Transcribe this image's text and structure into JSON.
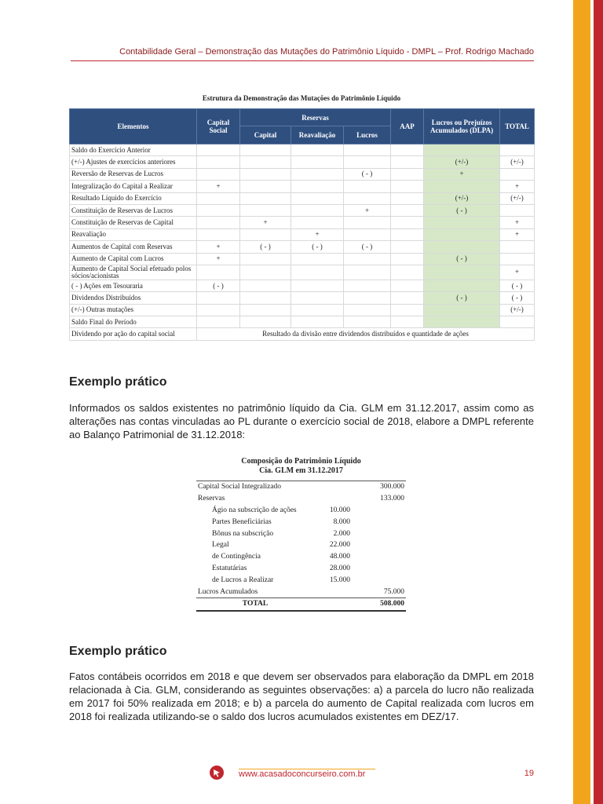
{
  "header": {
    "title": "Contabilidade Geral – Demonstração das Mutações do Patrimônio Líquido - DMPL – Prof. Rodrigo Machado"
  },
  "table1": {
    "title": "Estrutura da Demonstração das Mutações do Patrimônio Líquido",
    "headers": {
      "elements": "Elementos",
      "capital_social": "Capital Social",
      "reserves": "Reservas",
      "capital": "Capital",
      "revaluation": "Reavaliação",
      "profits": "Lucros",
      "aap": "AAP",
      "dlpa": "Lucros ou Prejuízos Acumulados (DLPA)",
      "total": "TOTAL"
    },
    "rows": [
      {
        "label": "Saldo do Exercício Anterior",
        "cells": [
          null,
          null,
          null,
          null,
          null,
          null,
          null
        ]
      },
      {
        "label": "(+/-) Ajustes de exercícios anteriores",
        "cells": [
          null,
          null,
          null,
          null,
          null,
          "(+/-)",
          "(+/-)"
        ]
      },
      {
        "label": "Reversão de Reservas de Lucros",
        "cells": [
          null,
          null,
          null,
          "( - )",
          null,
          "+",
          null
        ]
      },
      {
        "label": "Integralização do Capital a Realizar",
        "cells": [
          "+",
          null,
          null,
          null,
          null,
          null,
          "+"
        ]
      },
      {
        "label": "Resultado Líquido do Exercício",
        "cells": [
          null,
          null,
          null,
          null,
          null,
          "(+/-)",
          "(+/-)"
        ]
      },
      {
        "label": "Constituição de Reservas de Lucros",
        "cells": [
          null,
          null,
          null,
          "+",
          null,
          "( - )",
          null
        ]
      },
      {
        "label": "Constituição de Reservas de Capital",
        "cells": [
          null,
          "+",
          null,
          null,
          null,
          null,
          "+"
        ]
      },
      {
        "label": "Reavaliação",
        "cells": [
          null,
          null,
          "+",
          null,
          null,
          null,
          "+"
        ]
      },
      {
        "label": "Aumentos de Capital com Reservas",
        "cells": [
          "+",
          "( - )",
          "( - )",
          "( - )",
          null,
          null,
          null
        ]
      },
      {
        "label": "Aumento de Capital com Lucros",
        "cells": [
          "+",
          null,
          null,
          null,
          null,
          "( - )",
          null
        ]
      },
      {
        "label": "Aumento de Capital Social efetuado polos sócios/acionistas",
        "cells": [
          null,
          null,
          null,
          null,
          null,
          null,
          "+"
        ]
      },
      {
        "label": "( - ) Ações em Tesouraria",
        "cells": [
          "( - )",
          null,
          null,
          null,
          null,
          null,
          "( - )"
        ]
      },
      {
        "label": "Dividendos Distribuídos",
        "cells": [
          null,
          null,
          null,
          null,
          null,
          "( - )",
          "( - )"
        ]
      },
      {
        "label": "(+/-) Outras mutações",
        "cells": [
          null,
          null,
          null,
          null,
          null,
          null,
          "(+/-)"
        ]
      },
      {
        "label": "Saldo Final do Período",
        "cells": [
          null,
          null,
          null,
          null,
          null,
          null,
          null
        ]
      },
      {
        "label": "Dividendo por ação do capital social",
        "note": "Resultado da divisão entre dividendos distribuídos e quantidade de ações"
      }
    ]
  },
  "section1": {
    "heading": "Exemplo prático",
    "text": "Informados os saldos existentes no patrimônio líquido da Cia. GLM em 31.12.2017, assim como as alterações nas contas vinculadas ao PL durante o exercício social de 2018, elabore a DMPL referente ao Balanço Patrimonial de 31.12.2018:"
  },
  "table2": {
    "title": "Composição do Patrimônio Líquido",
    "subtitle": "Cia. GLM em 31.12.2017",
    "rows": [
      {
        "label": "Capital Social Integralizado",
        "total": "300.000"
      },
      {
        "label": "Reservas",
        "total": "133.000"
      },
      {
        "label": "Ágio na subscrição de ações",
        "partial": "10.000"
      },
      {
        "label": "Partes Beneficiárias",
        "partial": "8.000"
      },
      {
        "label": "Bônus na subscrição",
        "partial": "2.000"
      },
      {
        "label": "Legal",
        "partial": "22.000"
      },
      {
        "label": "de Contingência",
        "partial": "48.000"
      },
      {
        "label": "Estatutárias",
        "partial": "28.000"
      },
      {
        "label": "de Lucros a Realizar",
        "partial": "15.000"
      },
      {
        "label": "Lucros Acumulados",
        "total": "75.000"
      },
      {
        "label": "TOTAL",
        "total": "508.000"
      }
    ]
  },
  "section2": {
    "heading": "Exemplo prático",
    "text": "Fatos contábeis ocorridos em 2018 e que devem ser observados para elaboração da DMPL em 2018 relacionada à Cia. GLM, considerando as seguintes observações: a) a parcela do lucro não realizada em 2017 foi 50% realizada em 2018; e b) a parcela do aumento de Capital realizada com lucros em 2018 foi realizada utilizando-se o saldo dos lucros acumulados existentes em DEZ/17."
  },
  "footer": {
    "url": "www.acasadoconcurseiro.com.br",
    "page": "19"
  }
}
